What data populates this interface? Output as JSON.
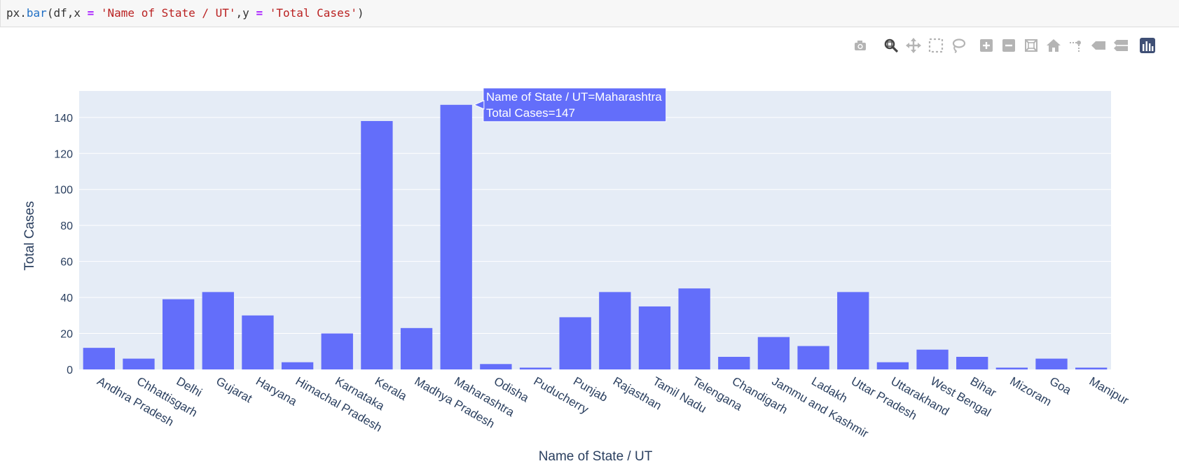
{
  "code_cell": {
    "prefix": "px.",
    "fn": "bar",
    "open": "(df,x ",
    "eq": "=",
    "space": " ",
    "x_arg": "'Name of State / UT'",
    "mid": ",y ",
    "y_arg": "'Total Cases'",
    "close": ")"
  },
  "modebar": {
    "buttons": [
      {
        "name": "camera-icon",
        "active": false
      },
      {
        "name": "zoom-icon",
        "active": true
      },
      {
        "name": "pan-icon",
        "active": false
      },
      {
        "name": "box-select-icon",
        "active": false
      },
      {
        "name": "lasso-select-icon",
        "active": false
      },
      {
        "name": "zoom-in-icon",
        "active": false
      },
      {
        "name": "zoom-out-icon",
        "active": false
      },
      {
        "name": "autoscale-icon",
        "active": false
      },
      {
        "name": "reset-axes-icon",
        "active": false
      },
      {
        "name": "spike-lines-icon",
        "active": false
      },
      {
        "name": "hover-closest-icon",
        "active": false
      },
      {
        "name": "hover-compare-icon",
        "active": false
      },
      {
        "name": "plotly-logo-icon",
        "active": false
      }
    ]
  },
  "colors": {
    "bar": "#636efa",
    "plot_bg": "#e5ecf6",
    "grid": "#ffffff",
    "axis_text": "#2a3f5f",
    "modebar_icon": "#b4b4b4",
    "modebar_active": "#444444",
    "plotly_logo": "#3f4f75"
  },
  "chart_data": {
    "type": "bar",
    "title": "",
    "xlabel": "Name of State / UT",
    "ylabel": "Total Cases",
    "categories": [
      "Andhra Pradesh",
      "Chhattisgarh",
      "Delhi",
      "Gujarat",
      "Haryana",
      "Himachal Pradesh",
      "Karnataka",
      "Kerala",
      "Madhya Pradesh",
      "Maharashtra",
      "Odisha",
      "Puducherry",
      "Punjab",
      "Rajasthan",
      "Tamil Nadu",
      "Telengana",
      "Chandigarh",
      "Jammu and Kashmir",
      "Ladakh",
      "Uttar Pradesh",
      "Uttarakhand",
      "West Bengal",
      "Bihar",
      "Mizoram",
      "Goa",
      "Manipur"
    ],
    "values": [
      12,
      6,
      39,
      43,
      30,
      4,
      20,
      138,
      23,
      147,
      3,
      1,
      29,
      43,
      35,
      45,
      7,
      18,
      13,
      43,
      4,
      11,
      7,
      1,
      6,
      1
    ],
    "ylim": [
      0,
      154.7
    ],
    "yticks": [
      0,
      20,
      40,
      60,
      80,
      100,
      120,
      140
    ],
    "grid": true,
    "hover": {
      "index": 9,
      "line1": "Name of State / UT=Maharashtra",
      "line2": "Total Cases=147"
    }
  }
}
